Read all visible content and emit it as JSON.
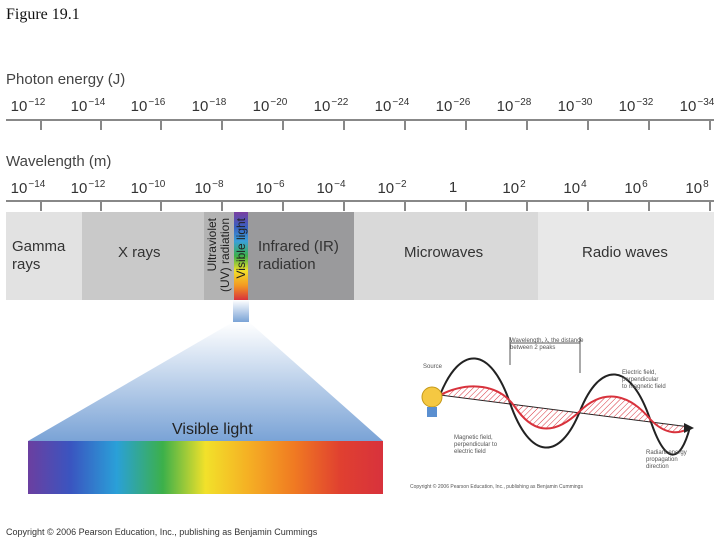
{
  "figure_title": "Figure 19.1",
  "photon_energy": {
    "title": "Photon energy (J)",
    "ticks": [
      {
        "base": "10",
        "exp": "−12"
      },
      {
        "base": "10",
        "exp": "−14"
      },
      {
        "base": "10",
        "exp": "−16"
      },
      {
        "base": "10",
        "exp": "−18"
      },
      {
        "base": "10",
        "exp": "−20"
      },
      {
        "base": "10",
        "exp": "−22"
      },
      {
        "base": "10",
        "exp": "−24"
      },
      {
        "base": "10",
        "exp": "−26"
      },
      {
        "base": "10",
        "exp": "−28"
      },
      {
        "base": "10",
        "exp": "−30"
      },
      {
        "base": "10",
        "exp": "−32"
      },
      {
        "base": "10",
        "exp": "−34"
      }
    ]
  },
  "wavelength": {
    "title": "Wavelength (m)",
    "ticks": [
      {
        "base": "10",
        "exp": "−14"
      },
      {
        "base": "10",
        "exp": "−12"
      },
      {
        "base": "10",
        "exp": "−10"
      },
      {
        "base": "10",
        "exp": "−8"
      },
      {
        "base": "10",
        "exp": "−6"
      },
      {
        "base": "10",
        "exp": "−4"
      },
      {
        "base": "10",
        "exp": "−2"
      },
      {
        "base": "1",
        "exp": ""
      },
      {
        "base": "10",
        "exp": "2"
      },
      {
        "base": "10",
        "exp": "4"
      },
      {
        "base": "10",
        "exp": "6"
      },
      {
        "base": "10",
        "exp": "8"
      }
    ]
  },
  "bands": {
    "gamma_line1": "Gamma",
    "gamma_line2": "rays",
    "xrays": "X rays",
    "uv_line1": "Ultraviolet",
    "uv_line2": "(UV) radiation",
    "visible_vertical": "Visible light",
    "ir_line1": "Infrared (IR)",
    "ir_line2": "radiation",
    "microwaves": "Microwaves",
    "radio": "Radio waves"
  },
  "visible_light_label": "Visible light",
  "wave_diagram": {
    "wavelength_line1": "Wavelength, λ, the distance",
    "wavelength_line2": "between 2 peaks",
    "source": "Source",
    "electric_line1": "Electric field,",
    "electric_line2": "perpendicular",
    "electric_line3": "to magnetic field",
    "magnetic_line1": "Magnetic field,",
    "magnetic_line2": "perpendicular to",
    "magnetic_line3": "electric field",
    "radiant_line1": "Radiant energy",
    "radiant_line2": "propagation",
    "radiant_line3": "direction",
    "small_copyright": "Copyright © 2006 Pearson Education, Inc., publishing as Benjamin Cummings"
  },
  "colors": {
    "gamma": "#e2e2e2",
    "xray": "#c9c9c9",
    "uv": "#b3b3b3",
    "ir": "#9a9a9c",
    "microwave": "#d9d9d9",
    "radio": "#e8e8e8",
    "wave_red": "#d8323c"
  },
  "copyright": "Copyright © 2006 Pearson Education, Inc., publishing as Benjamin Cummings"
}
